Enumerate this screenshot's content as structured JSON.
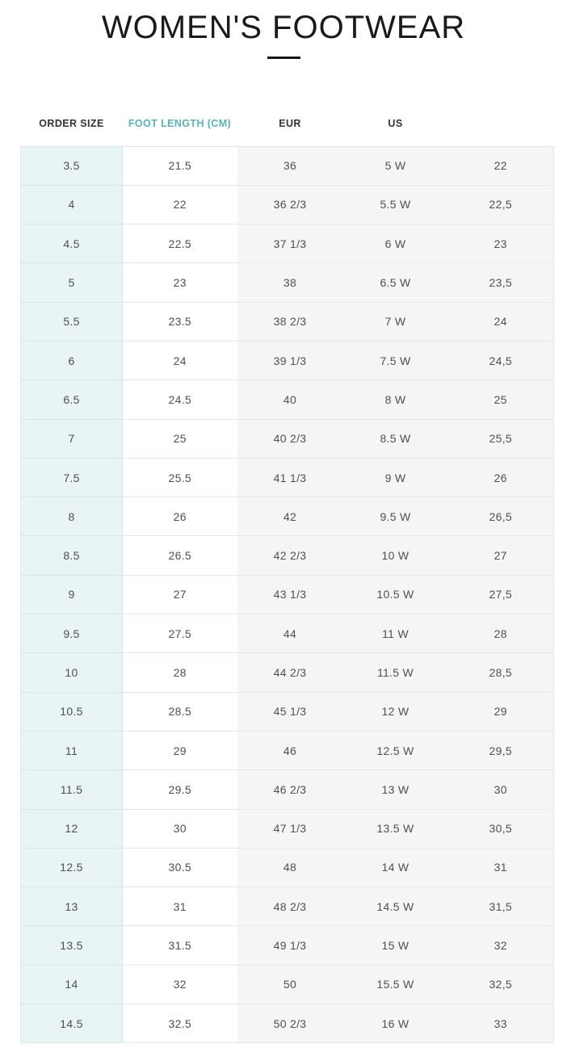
{
  "page": {
    "title": "WOMEN'S FOOTWEAR"
  },
  "colors": {
    "accent_teal": "#55b3b9",
    "order_size_column_bg": "#e9f4f5",
    "order_size_column_border": "#d6e8ea",
    "gray_columns_bg": "#f5f5f5",
    "row_border": "#e6e6e6",
    "cell_text": "#4f4f4f",
    "header_text": "#333333",
    "title_text": "#1a1a1a"
  },
  "table": {
    "columns": [
      {
        "label": "ORDER SIZE"
      },
      {
        "label": "FOOT LENGTH (CM)"
      },
      {
        "label": "EUR"
      },
      {
        "label": "US"
      },
      {
        "label": ""
      }
    ],
    "rows": [
      [
        "3.5",
        "21.5",
        "36",
        "5 W",
        "22"
      ],
      [
        "4",
        "22",
        "36 2/3",
        "5.5 W",
        "22,5"
      ],
      [
        "4.5",
        "22.5",
        "37 1/3",
        "6 W",
        "23"
      ],
      [
        "5",
        "23",
        "38",
        "6.5 W",
        "23,5"
      ],
      [
        "5.5",
        "23.5",
        "38 2/3",
        "7 W",
        "24"
      ],
      [
        "6",
        "24",
        "39 1/3",
        "7.5 W",
        "24,5"
      ],
      [
        "6.5",
        "24.5",
        "40",
        "8 W",
        "25"
      ],
      [
        "7",
        "25",
        "40 2/3",
        "8.5 W",
        "25,5"
      ],
      [
        "7.5",
        "25.5",
        "41 1/3",
        "9 W",
        "26"
      ],
      [
        "8",
        "26",
        "42",
        "9.5 W",
        "26,5"
      ],
      [
        "8.5",
        "26.5",
        "42 2/3",
        "10 W",
        "27"
      ],
      [
        "9",
        "27",
        "43 1/3",
        "10.5 W",
        "27,5"
      ],
      [
        "9.5",
        "27.5",
        "44",
        "11 W",
        "28"
      ],
      [
        "10",
        "28",
        "44 2/3",
        "11.5 W",
        "28,5"
      ],
      [
        "10.5",
        "28.5",
        "45 1/3",
        "12 W",
        "29"
      ],
      [
        "11",
        "29",
        "46",
        "12.5 W",
        "29,5"
      ],
      [
        "11.5",
        "29.5",
        "46 2/3",
        "13 W",
        "30"
      ],
      [
        "12",
        "30",
        "47 1/3",
        "13.5 W",
        "30,5"
      ],
      [
        "12.5",
        "30.5",
        "48",
        "14 W",
        "31"
      ],
      [
        "13",
        "31",
        "48 2/3",
        "14.5 W",
        "31,5"
      ],
      [
        "13.5",
        "31.5",
        "49 1/3",
        "15 W",
        "32"
      ],
      [
        "14",
        "32",
        "50",
        "15.5 W",
        "32,5"
      ],
      [
        "14.5",
        "32.5",
        "50 2/3",
        "16 W",
        "33"
      ]
    ]
  }
}
